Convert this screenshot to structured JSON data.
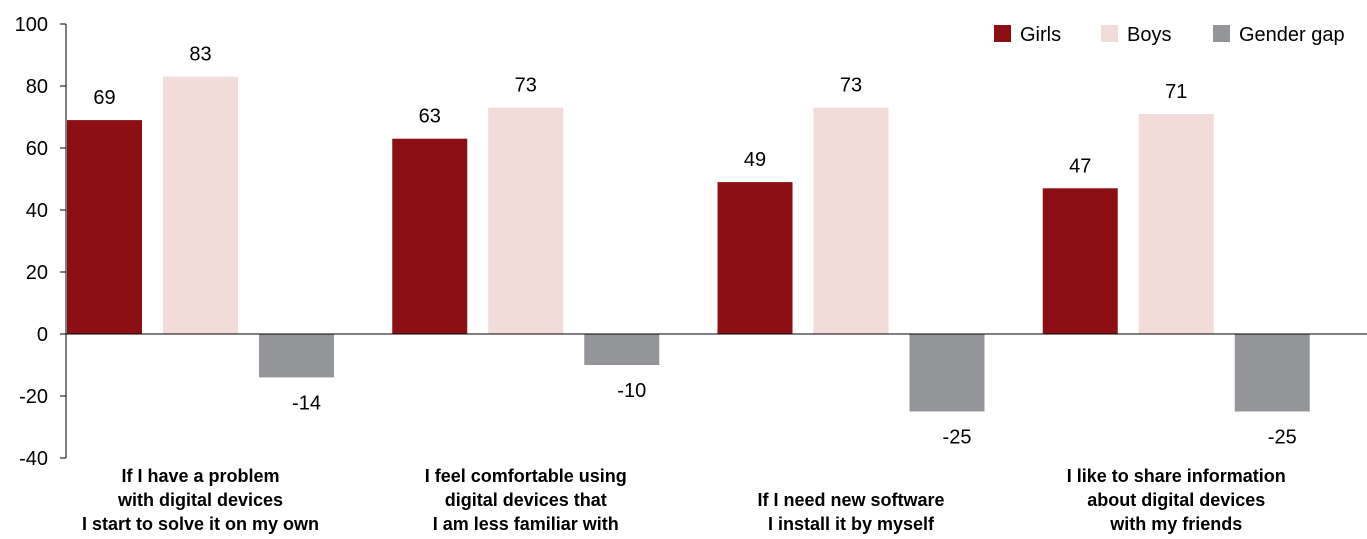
{
  "chart_data": {
    "type": "bar",
    "categories": [
      [
        "If I have a problem",
        "with digital devices",
        "I start to solve it on my own"
      ],
      [
        "I feel comfortable using",
        "digital devices that",
        "I am less familiar with"
      ],
      [
        "If I need new software",
        "I install it by myself"
      ],
      [
        "I like to share information",
        "about digital devices",
        "with my friends"
      ]
    ],
    "series": [
      {
        "name": "Girls",
        "color": "#8b0f14",
        "values": [
          69,
          63,
          49,
          47
        ]
      },
      {
        "name": "Boys",
        "color": "#f2dcda",
        "values": [
          83,
          73,
          73,
          71
        ]
      },
      {
        "name": "Gender gap",
        "color": "#939598",
        "values": [
          -14,
          -10,
          -25,
          -25
        ]
      }
    ],
    "ylim": [
      -40,
      100
    ],
    "yticks": [
      100,
      80,
      60,
      40,
      20,
      0,
      -20,
      -40
    ],
    "title": "",
    "xlabel": "",
    "ylabel": "",
    "legend_position": "top-right"
  }
}
